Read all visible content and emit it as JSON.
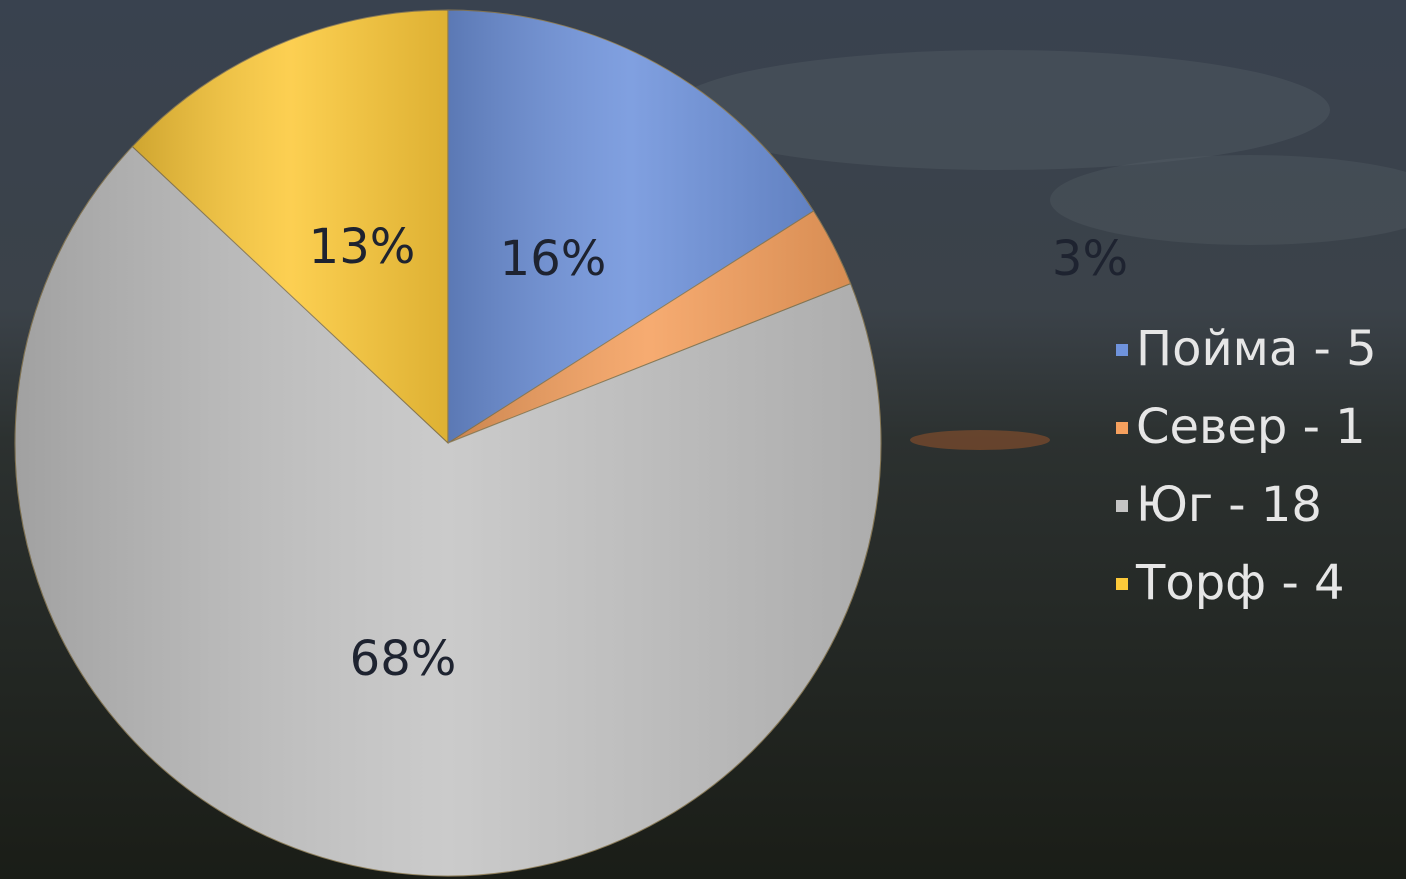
{
  "chart_data": {
    "type": "pie",
    "categories": [
      "Пойма - 5",
      "Север - 1",
      "Юг - 18",
      "Торф - 4"
    ],
    "values": [
      16,
      3,
      68,
      13
    ],
    "value_labels": [
      "16%",
      "3%",
      "68%",
      "13%"
    ],
    "colors": [
      "#6f93dc",
      "#f5a05e",
      "#c4c4c4",
      "#fcc93a"
    ],
    "legend": "right"
  }
}
